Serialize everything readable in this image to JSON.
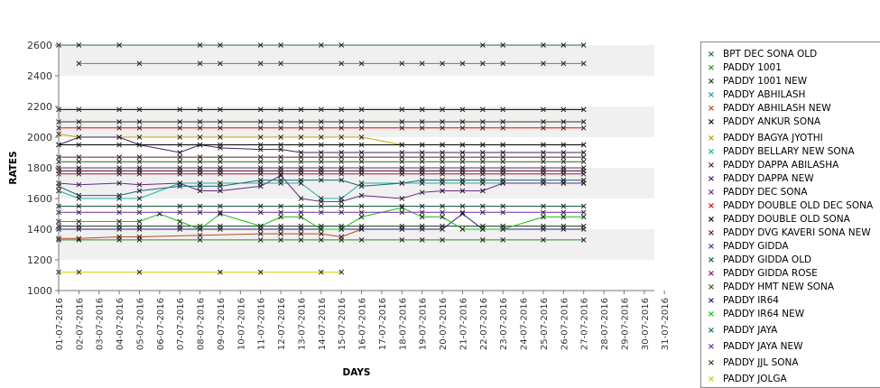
{
  "chart_data": {
    "type": "line",
    "title": "",
    "xlabel": "DAYS",
    "ylabel": "RATES",
    "ylim": [
      1000,
      2600
    ],
    "yticks": [
      1000,
      1200,
      1400,
      1600,
      1800,
      2000,
      2200,
      2400,
      2600
    ],
    "categories": [
      "01-07-2016",
      "02-07-2016",
      "03-07-2016",
      "04-07-2016",
      "05-07-2016",
      "06-07-2016",
      "07-07-2016",
      "08-07-2016",
      "09-07-2016",
      "10-07-2016",
      "11-07-2016",
      "12-07-2016",
      "13-07-2016",
      "14-07-2016",
      "15-07-2016",
      "16-07-2016",
      "17-07-2016",
      "18-07-2016",
      "19-07-2016",
      "20-07-2016",
      "21-07-2016",
      "22-07-2016",
      "23-07-2016",
      "24-07-2016",
      "25-07-2016",
      "26-07-2016",
      "27-07-2016",
      "28-07-2016",
      "29-07-2016",
      "30-07-2016",
      "31-07-2016"
    ],
    "grid": "alternating horizontal bands",
    "legend_position": "right",
    "series": [
      {
        "name": "BPT DEC SONA OLD",
        "color": "#1f6e4a",
        "values": [
          2600,
          2600,
          null,
          2600,
          null,
          null,
          null,
          2600,
          2600,
          null,
          2600,
          2600,
          null,
          2600,
          2600,
          null,
          null,
          null,
          null,
          null,
          null,
          2600,
          2600,
          null,
          2600,
          2600,
          2600,
          null,
          null,
          null,
          null
        ]
      },
      {
        "name": "PADDY 1001",
        "color": "#2a8a2a",
        "values": [
          1330,
          1330,
          null,
          1330,
          1330,
          null,
          null,
          1330,
          null,
          null,
          1330,
          1330,
          1330,
          1330,
          1330,
          1330,
          null,
          1330,
          1330,
          1330,
          null,
          1330,
          1330,
          null,
          1330,
          null,
          1330,
          null,
          null,
          null,
          null
        ]
      },
      {
        "name": "PADDY 1001 NEW",
        "color": "#1a3d1a",
        "values": [
          1420,
          1420,
          null,
          1420,
          1420,
          null,
          1420,
          1420,
          1420,
          null,
          1420,
          1420,
          1420,
          1420,
          1420,
          1420,
          null,
          1420,
          1420,
          1420,
          null,
          1420,
          1420,
          null,
          1420,
          1420,
          1420,
          null,
          null,
          null,
          null
        ]
      },
      {
        "name": "PADDY ABHILASH",
        "color": "#1aa0a0",
        "values": [
          null,
          2480,
          null,
          null,
          2480,
          null,
          null,
          2480,
          2480,
          null,
          2480,
          2480,
          null,
          null,
          2480,
          2480,
          null,
          2480,
          2480,
          2480,
          2480,
          2480,
          2480,
          null,
          2480,
          2480,
          2480,
          null,
          null,
          null,
          null
        ]
      },
      {
        "name": "PADDY ABHILASH NEW",
        "color": "#b0501a",
        "values": [
          1340,
          1340,
          null,
          1350,
          1350,
          null,
          null,
          1360,
          null,
          null,
          1370,
          1370,
          1370,
          1370,
          1350,
          1400,
          null,
          1400,
          null,
          null,
          null,
          null,
          null,
          null,
          null,
          null,
          null,
          null,
          null,
          null,
          null
        ]
      },
      {
        "name": "PADDY ANKUR SONA",
        "color": "#000000",
        "values": [
          2180,
          2180,
          null,
          2180,
          2180,
          null,
          2180,
          2180,
          2180,
          null,
          2180,
          2180,
          2180,
          2180,
          2180,
          2180,
          null,
          2180,
          2180,
          2180,
          2180,
          2180,
          2180,
          null,
          2180,
          2180,
          2180,
          null,
          null,
          null,
          null
        ]
      },
      {
        "name": "PADDY BAGYA JYOTHI",
        "color": "#c8a000",
        "values": [
          2020,
          2000,
          null,
          2000,
          2000,
          null,
          2000,
          2000,
          2000,
          null,
          2000,
          2000,
          2000,
          2000,
          2000,
          2000,
          null,
          1950,
          1950,
          1950,
          1950,
          1950,
          1950,
          null,
          1950,
          1950,
          1950,
          null,
          null,
          null,
          null
        ]
      },
      {
        "name": "PADDY BELLARY NEW SONA",
        "color": "#20b0a0",
        "values": [
          1650,
          1600,
          null,
          1600,
          1600,
          null,
          1700,
          1700,
          1700,
          null,
          1700,
          1700,
          1700,
          1600,
          1600,
          1700,
          null,
          1700,
          1700,
          1700,
          1700,
          1700,
          1700,
          null,
          1700,
          1700,
          1700,
          null,
          null,
          null,
          null
        ]
      },
      {
        "name": "PADDY DAPPA ABILASHA",
        "color": "#602020",
        "values": [
          1870,
          1870,
          null,
          1870,
          1870,
          null,
          1870,
          1870,
          1870,
          null,
          1870,
          1870,
          1870,
          1870,
          1870,
          1870,
          null,
          1870,
          1870,
          1870,
          1870,
          1870,
          1870,
          null,
          1870,
          1870,
          1870,
          null,
          null,
          null,
          null
        ]
      },
      {
        "name": "PADDY DAPPA NEW",
        "color": "#402060",
        "values": [
          1950,
          2000,
          null,
          2000,
          1950,
          null,
          1900,
          1950,
          1930,
          null,
          1920,
          1920,
          1900,
          1900,
          1900,
          1900,
          null,
          1900,
          1900,
          1900,
          1900,
          1900,
          1900,
          null,
          1900,
          1900,
          1900,
          null,
          null,
          null,
          null
        ]
      },
      {
        "name": "PADDY DEC SONA",
        "color": "#6a2a8a",
        "values": [
          1700,
          1690,
          null,
          1700,
          1690,
          null,
          1700,
          1650,
          1650,
          null,
          1680,
          1750,
          1600,
          1580,
          1580,
          1620,
          null,
          1600,
          1640,
          1650,
          1650,
          1650,
          1700,
          null,
          1700,
          1700,
          1700,
          null,
          null,
          null,
          null
        ]
      },
      {
        "name": "PADDY DOUBLE OLD DEC SONA",
        "color": "#d01010",
        "values": [
          2060,
          2060,
          null,
          2060,
          2060,
          null,
          2060,
          2060,
          2060,
          null,
          2060,
          2060,
          2060,
          2060,
          2060,
          2060,
          null,
          2060,
          2060,
          2060,
          2060,
          2060,
          2060,
          null,
          2060,
          2060,
          2060,
          null,
          null,
          null,
          null
        ]
      },
      {
        "name": "PADDY DOUBLE OLD SONA",
        "color": "#000000",
        "values": [
          1950,
          1950,
          null,
          1950,
          1950,
          null,
          1950,
          1950,
          1950,
          null,
          1950,
          1950,
          1950,
          1950,
          1950,
          1950,
          null,
          1950,
          1950,
          1950,
          1950,
          1950,
          1950,
          null,
          1950,
          1950,
          1950,
          null,
          null,
          null,
          null
        ]
      },
      {
        "name": "PADDY DVG KAVERI SONA NEW",
        "color": "#701010",
        "values": [
          1780,
          1780,
          null,
          1780,
          1780,
          null,
          1780,
          1780,
          1780,
          null,
          1780,
          1780,
          1780,
          1780,
          1780,
          1780,
          null,
          1780,
          1780,
          1780,
          1780,
          1780,
          1780,
          null,
          1780,
          1780,
          1780,
          null,
          null,
          null,
          null
        ]
      },
      {
        "name": "PADDY GIDDA",
        "color": "#5a2a9a",
        "values": [
          1800,
          1800,
          null,
          1800,
          1800,
          null,
          1800,
          1800,
          1800,
          null,
          1800,
          1800,
          1800,
          1800,
          1800,
          1800,
          null,
          1800,
          1800,
          1800,
          1800,
          1800,
          1800,
          null,
          1800,
          1800,
          1800,
          null,
          null,
          null,
          null
        ]
      },
      {
        "name": "PADDY GIDDA OLD",
        "color": "#1a5a3a",
        "values": [
          1550,
          1550,
          null,
          1550,
          1550,
          null,
          1550,
          1550,
          1550,
          null,
          1550,
          1550,
          1550,
          1550,
          1550,
          1550,
          null,
          1550,
          1550,
          1550,
          1550,
          1550,
          1550,
          null,
          1550,
          1550,
          1550,
          null,
          null,
          null,
          null
        ]
      },
      {
        "name": "PADDY GIDDA ROSE",
        "color": "#8a1a6a",
        "values": [
          1760,
          1760,
          null,
          1760,
          1760,
          null,
          1760,
          1760,
          1760,
          null,
          1760,
          1760,
          1760,
          1760,
          1760,
          1760,
          null,
          1760,
          1760,
          1760,
          1760,
          1760,
          1760,
          null,
          1760,
          1760,
          1760,
          null,
          null,
          null,
          null
        ]
      },
      {
        "name": "PADDY HMT NEW SONA",
        "color": "#3a5a1a",
        "values": [
          1840,
          1840,
          null,
          1840,
          1840,
          null,
          1840,
          1840,
          1840,
          null,
          1840,
          1840,
          1840,
          1840,
          1840,
          1840,
          null,
          1840,
          1840,
          1840,
          1840,
          1840,
          1840,
          null,
          1840,
          1840,
          1840,
          null,
          null,
          null,
          null
        ]
      },
      {
        "name": "PADDY IR64",
        "color": "#2a1a7a",
        "values": [
          1400,
          1400,
          null,
          1400,
          1400,
          null,
          1400,
          1400,
          1400,
          null,
          1400,
          1400,
          1400,
          1400,
          1400,
          1400,
          null,
          1400,
          1400,
          1400,
          1500,
          1400,
          1400,
          null,
          1400,
          1400,
          1400,
          null,
          null,
          null,
          null
        ]
      },
      {
        "name": "PADDY IR64 NEW",
        "color": "#10c010",
        "values": [
          1450,
          1450,
          null,
          1450,
          1450,
          1500,
          1450,
          1400,
          1500,
          null,
          1420,
          1480,
          1480,
          1400,
          1400,
          1480,
          null,
          1540,
          1480,
          1480,
          1400,
          1400,
          1400,
          null,
          1480,
          1480,
          1480,
          null,
          null,
          null,
          null
        ]
      },
      {
        "name": "PADDY JAYA",
        "color": "#1a6a7a",
        "values": [
          1680,
          1620,
          null,
          1620,
          1650,
          null,
          1680,
          1680,
          1680,
          null,
          1720,
          1720,
          1720,
          1720,
          1720,
          1680,
          null,
          1700,
          1720,
          1720,
          1720,
          1720,
          1720,
          null,
          1720,
          1720,
          1720,
          null,
          null,
          null,
          null
        ]
      },
      {
        "name": "PADDY JAYA NEW",
        "color": "#6a2aaa",
        "values": [
          1510,
          1510,
          null,
          1510,
          1510,
          null,
          1510,
          1510,
          1510,
          null,
          1510,
          1510,
          1510,
          1510,
          1510,
          1510,
          null,
          1510,
          1510,
          1510,
          1510,
          1510,
          1510,
          null,
          1510,
          1510,
          1510,
          null,
          null,
          null,
          null
        ]
      },
      {
        "name": "PADDY JJL SONA",
        "color": "#3a3a10",
        "values": [
          2100,
          2100,
          null,
          2100,
          2100,
          null,
          2100,
          2100,
          2100,
          null,
          2100,
          2100,
          2100,
          2100,
          2100,
          2100,
          null,
          2100,
          2100,
          2100,
          2100,
          2100,
          2100,
          null,
          2100,
          2100,
          2100,
          null,
          null,
          null,
          null
        ]
      },
      {
        "name": "PADDY JOLGA",
        "color": "#d0d000",
        "values": [
          1120,
          1120,
          null,
          null,
          1120,
          null,
          null,
          null,
          1120,
          null,
          1120,
          null,
          null,
          1120,
          1120,
          null,
          null,
          null,
          null,
          null,
          null,
          null,
          null,
          null,
          null,
          null,
          null,
          null,
          null,
          null,
          null
        ]
      }
    ]
  }
}
